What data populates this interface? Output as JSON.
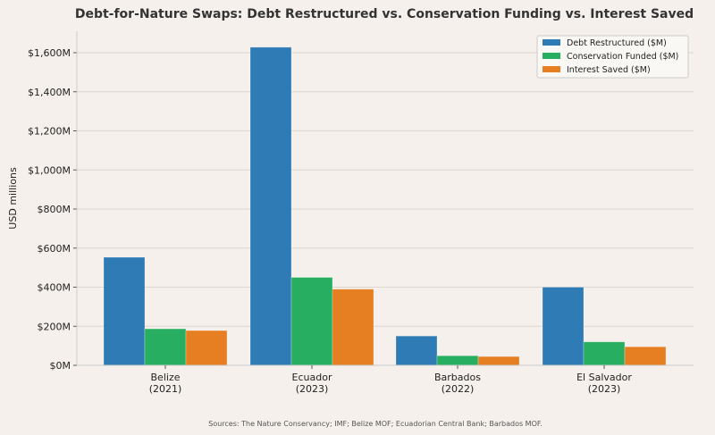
{
  "chart_data": {
    "type": "bar",
    "title": "Debt-for-Nature Swaps: Debt Restructured vs. Conservation Funding vs. Interest Saved",
    "ylabel": "USD millions",
    "xlabel": "",
    "categories": [
      "Belize\n(2021)",
      "Ecuador\n(2023)",
      "Barbados\n(2022)",
      "El Salvador\n(2023)"
    ],
    "series": [
      {
        "name": "Debt Restructured ($M)",
        "color": "#2e7bb6",
        "values": [
          553,
          1628,
          150,
          400
        ]
      },
      {
        "name": "Conservation Funded ($M)",
        "color": "#27ae60",
        "values": [
          187,
          450,
          49,
          120
        ]
      },
      {
        "name": "Interest Saved ($M)",
        "color": "#e67e22",
        "values": [
          178,
          390,
          45,
          95
        ]
      }
    ],
    "ylim": [
      0,
      1700
    ],
    "yticks": [
      0,
      200,
      400,
      600,
      800,
      1000,
      1200,
      1400,
      1600
    ],
    "ytick_labels": [
      "$0M",
      "$200M",
      "$400M",
      "$600M",
      "$800M",
      "$1,000M",
      "$1,200M",
      "$1,400M",
      "$1,600M"
    ],
    "grid": "horizontal",
    "legend_position": "top-right",
    "source": "Sources: The Nature Conservancy; IMF; Belize MOF; Ecuadorian Central Bank; Barbados MOF."
  }
}
